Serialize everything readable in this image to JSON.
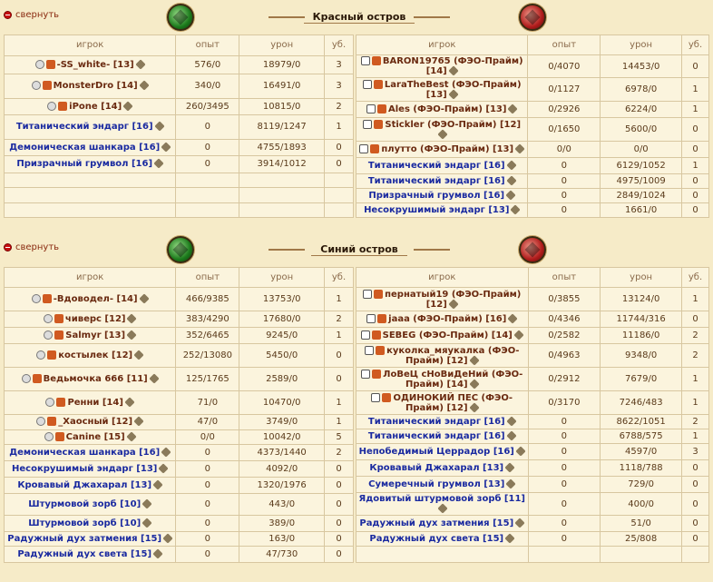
{
  "collapse_label": "свернуть",
  "columns": {
    "player": "игрок",
    "exp": "опыт",
    "dmg": "урон",
    "kills": "уб."
  },
  "sections": [
    {
      "title": "Красный остров",
      "left": [
        [
          "-SS_white- [13]",
          "576/0",
          "18979/0",
          "3"
        ],
        [
          "MonsterDro [14]",
          "340/0",
          "16491/0",
          "3"
        ],
        [
          "iPone [14]",
          "260/3495",
          "10815/0",
          "2"
        ],
        [
          "Титанический эндарг [16]",
          "0",
          "8119/1247",
          "1"
        ],
        [
          "Демоническая шанкара [16]",
          "0",
          "4755/1893",
          "0"
        ],
        [
          "Призрачный грумвол [16]",
          "0",
          "3914/1012",
          "0"
        ]
      ],
      "right": [
        [
          "BARON19765 (ФЭО-Прайм) [14]",
          "0/4070",
          "14453/0",
          "0"
        ],
        [
          "LaraTheBest (ФЭО-Прайм) [13]",
          "0/1127",
          "6978/0",
          "1"
        ],
        [
          "Ales (ФЭО-Прайм) [13]",
          "0/2926",
          "6224/0",
          "1"
        ],
        [
          "Stickler (ФЭО-Прайм) [12]",
          "0/1650",
          "5600/0",
          "0"
        ],
        [
          "плутто (ФЭО-Прайм) [13]",
          "0/0",
          "0/0",
          "0"
        ],
        [
          "Титанический эндарг [16]",
          "0",
          "6129/1052",
          "1"
        ],
        [
          "Титанический эндарг [16]",
          "0",
          "4975/1009",
          "0"
        ],
        [
          "Призрачный грумвол [16]",
          "0",
          "2849/1024",
          "0"
        ],
        [
          "Несокрушимый эндарг [13]",
          "0",
          "1661/0",
          "0"
        ]
      ]
    },
    {
      "title": "Синий остров",
      "left": [
        [
          "-Вдоводел- [14]",
          "466/9385",
          "13753/0",
          "1"
        ],
        [
          "чиверс [12]",
          "383/4290",
          "17680/0",
          "2"
        ],
        [
          "Salmyr [13]",
          "352/6465",
          "9245/0",
          "1"
        ],
        [
          "костылек [12]",
          "252/13080",
          "5450/0",
          "0"
        ],
        [
          "Ведьмочка 666 [11]",
          "125/1765",
          "2589/0",
          "0"
        ],
        [
          "Ренни [14]",
          "71/0",
          "10470/0",
          "1"
        ],
        [
          "_Хаосный [12]",
          "47/0",
          "3749/0",
          "1"
        ],
        [
          "Canine [15]",
          "0/0",
          "10042/0",
          "5"
        ],
        [
          "Демоническая шанкара [16]",
          "0",
          "4373/1440",
          "2"
        ],
        [
          "Несокрушимый эндарг [13]",
          "0",
          "4092/0",
          "0"
        ],
        [
          "Кровавый Джахарал [13]",
          "0",
          "1320/1976",
          "0"
        ],
        [
          "Штурмовой зорб [10]",
          "0",
          "443/0",
          "0"
        ],
        [
          "Штурмовой зорб [10]",
          "0",
          "389/0",
          "0"
        ],
        [
          "Радужный дух затмения [15]",
          "0",
          "163/0",
          "0"
        ],
        [
          "Радужный дух света [15]",
          "0",
          "47/730",
          "0"
        ]
      ],
      "right": [
        [
          "пернатый19 (ФЭО-Прайм) [12]",
          "0/3855",
          "13124/0",
          "1"
        ],
        [
          "jaaa (ФЭО-Прайм) [16]",
          "0/4346",
          "11744/316",
          "0"
        ],
        [
          "SEBEG (ФЭО-Прайм) [14]",
          "0/2582",
          "11186/0",
          "2"
        ],
        [
          "куколка_мяукалка (ФЭО-Прайм) [12]",
          "0/4963",
          "9348/0",
          "2"
        ],
        [
          "ЛоВеЦ сНоВиДеНий (ФЭО-Прайм) [14]",
          "0/2912",
          "7679/0",
          "1"
        ],
        [
          "ОДИНОКИЙ ПЕС (ФЭО-Прайм) [12]",
          "0/3170",
          "7246/483",
          "1"
        ],
        [
          "Титанический эндарг [16]",
          "0",
          "8622/1051",
          "2"
        ],
        [
          "Титанический эндарг [16]",
          "0",
          "6788/575",
          "1"
        ],
        [
          "Непобедимый Церрадор [16]",
          "0",
          "4597/0",
          "3"
        ],
        [
          "Кровавый Джахарал [13]",
          "0",
          "1118/788",
          "0"
        ],
        [
          "Сумеречный грумвол [13]",
          "0",
          "729/0",
          "0"
        ],
        [
          "Ядовитый штурмовой зорб [11]",
          "0",
          "400/0",
          "0"
        ],
        [
          "Радужный дух затмения [15]",
          "0",
          "51/0",
          "0"
        ],
        [
          "Радужный дух света [15]",
          "0",
          "25/808",
          "0"
        ]
      ]
    }
  ]
}
